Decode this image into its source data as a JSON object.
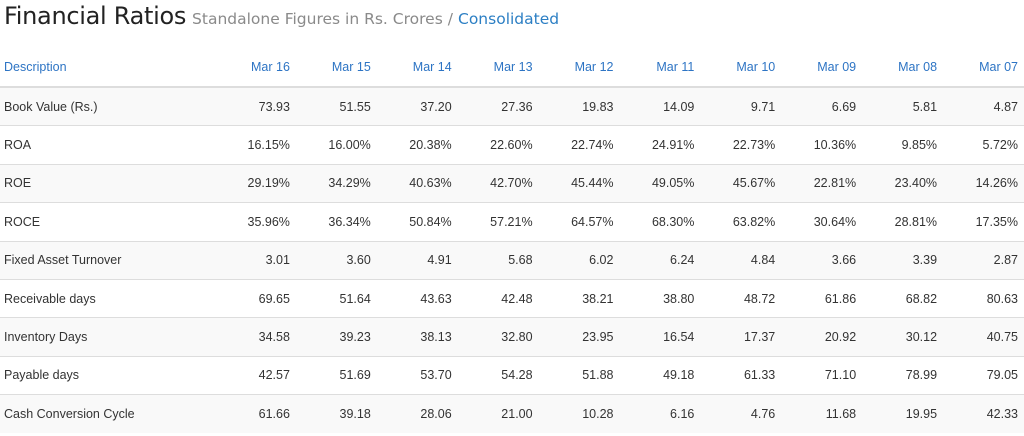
{
  "header": {
    "title": "Financial Ratios",
    "subtitle": "Standalone Figures in Rs. Crores",
    "separator": "/",
    "consolidated_link": "Consolidated"
  },
  "table": {
    "columns": [
      "Description",
      "Mar 16",
      "Mar 15",
      "Mar 14",
      "Mar 13",
      "Mar 12",
      "Mar 11",
      "Mar 10",
      "Mar 09",
      "Mar 08",
      "Mar 07"
    ],
    "rows": [
      {
        "label": "Book Value (Rs.)",
        "values": [
          "73.93",
          "51.55",
          "37.20",
          "27.36",
          "19.83",
          "14.09",
          "9.71",
          "6.69",
          "5.81",
          "4.87"
        ]
      },
      {
        "label": "ROA",
        "values": [
          "16.15%",
          "16.00%",
          "20.38%",
          "22.60%",
          "22.74%",
          "24.91%",
          "22.73%",
          "10.36%",
          "9.85%",
          "5.72%"
        ]
      },
      {
        "label": "ROE",
        "values": [
          "29.19%",
          "34.29%",
          "40.63%",
          "42.70%",
          "45.44%",
          "49.05%",
          "45.67%",
          "22.81%",
          "23.40%",
          "14.26%"
        ]
      },
      {
        "label": "ROCE",
        "values": [
          "35.96%",
          "36.34%",
          "50.84%",
          "57.21%",
          "64.57%",
          "68.30%",
          "63.82%",
          "30.64%",
          "28.81%",
          "17.35%"
        ]
      },
      {
        "label": "Fixed Asset Turnover",
        "values": [
          "3.01",
          "3.60",
          "4.91",
          "5.68",
          "6.02",
          "6.24",
          "4.84",
          "3.66",
          "3.39",
          "2.87"
        ]
      },
      {
        "label": "Receivable days",
        "values": [
          "69.65",
          "51.64",
          "43.63",
          "42.48",
          "38.21",
          "38.80",
          "48.72",
          "61.86",
          "68.82",
          "80.63"
        ]
      },
      {
        "label": "Inventory Days",
        "values": [
          "34.58",
          "39.23",
          "38.13",
          "32.80",
          "23.95",
          "16.54",
          "17.37",
          "20.92",
          "30.12",
          "40.75"
        ]
      },
      {
        "label": "Payable days",
        "values": [
          "42.57",
          "51.69",
          "53.70",
          "54.28",
          "51.88",
          "49.18",
          "61.33",
          "71.10",
          "78.99",
          "79.05"
        ]
      },
      {
        "label": "Cash Conversion Cycle",
        "values": [
          "61.66",
          "39.18",
          "28.06",
          "21.00",
          "10.28",
          "6.16",
          "4.76",
          "11.68",
          "19.95",
          "42.33"
        ]
      }
    ]
  }
}
